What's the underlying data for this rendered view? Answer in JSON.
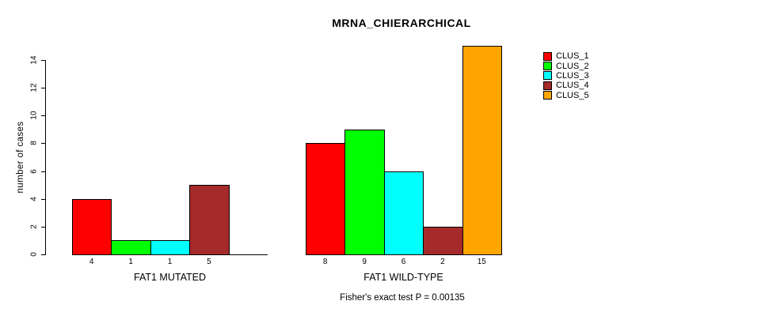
{
  "title": "MRNA_CHIERARCHICAL",
  "y_axis": {
    "label": "number of cases"
  },
  "footer_note": "Fisher's exact test P = 0.00135",
  "chart_data": {
    "type": "bar",
    "title": "MRNA_CHIERARCHICAL",
    "xlabel": "",
    "ylabel": "number of cases",
    "ylim": [
      0,
      14
    ],
    "y_ticks": [
      0,
      2,
      4,
      6,
      8,
      10,
      12,
      14
    ],
    "grid": false,
    "legend_position": "right-outside",
    "categories": [
      "FAT1 MUTATED",
      "FAT1 WILD-TYPE"
    ],
    "series": [
      {
        "name": "CLUS_1",
        "color": "#ff0000",
        "values": [
          4,
          8
        ]
      },
      {
        "name": "CLUS_2",
        "color": "#00ff00",
        "values": [
          1,
          9
        ]
      },
      {
        "name": "CLUS_3",
        "color": "#00ffff",
        "values": [
          1,
          6
        ]
      },
      {
        "name": "CLUS_4",
        "color": "#a52a2a",
        "values": [
          5,
          2
        ]
      },
      {
        "name": "CLUS_5",
        "color": "#ffa500",
        "values": [
          0,
          15
        ]
      }
    ],
    "bar_value_labels": {
      "FAT1 MUTATED": [
        "4",
        "1",
        "1",
        "5",
        ""
      ],
      "FAT1 WILD-TYPE": [
        "8",
        "9",
        "6",
        "2",
        "15"
      ]
    },
    "zero_height_bars_hidden": true,
    "annotation": "Fisher's exact test P = 0.00135"
  }
}
